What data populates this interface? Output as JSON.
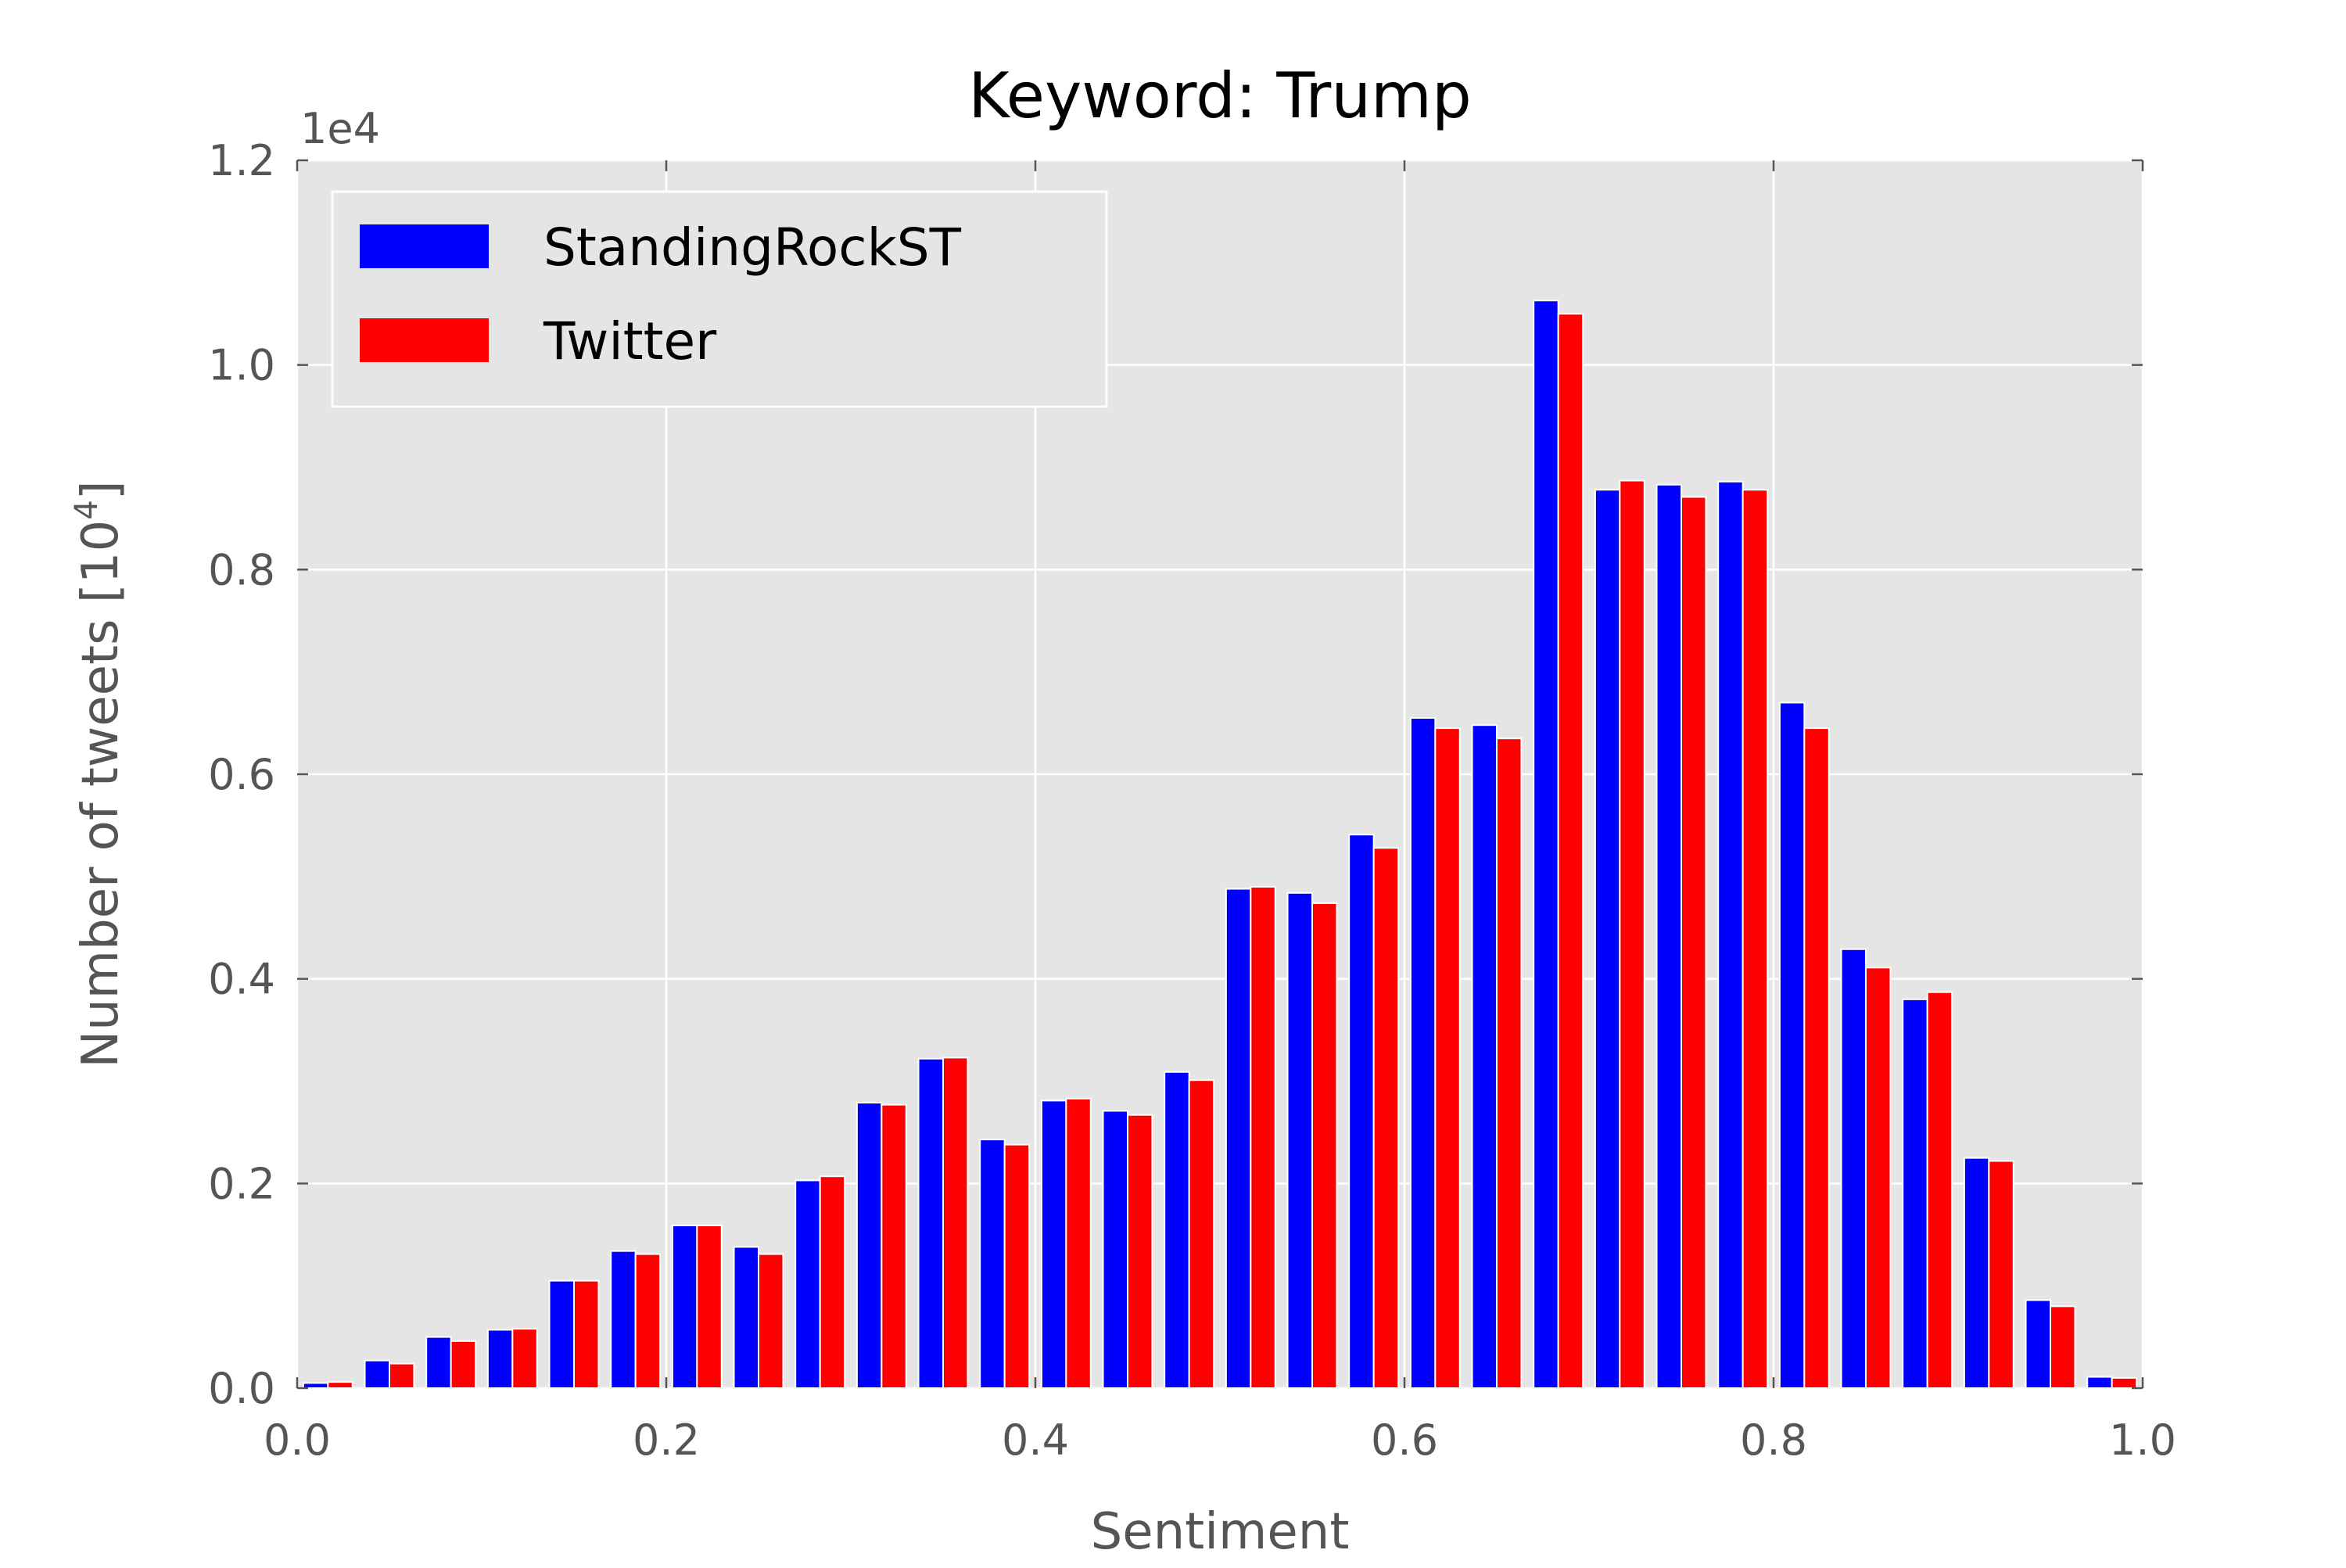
{
  "chart_data": {
    "type": "bar",
    "title": "Keyword: Trump",
    "xlabel": "Sentiment",
    "ylabel": "Number of tweets [10",
    "ylabel_sup": "4",
    "ylabel_suffix": "]",
    "y_offset_text": "1e4",
    "xlim": [
      0.0,
      1.0
    ],
    "ylim": [
      0.0,
      1.2
    ],
    "xticks": [
      "0.0",
      "0.2",
      "0.4",
      "0.6",
      "0.8",
      "1.0"
    ],
    "yticks": [
      "0.0",
      "0.2",
      "0.4",
      "0.6",
      "0.8",
      "1.0",
      "1.2"
    ],
    "grid": true,
    "legend_position": "top-left",
    "bins_count": 30,
    "series": [
      {
        "name": "StandingRockST",
        "color": "#0000ff",
        "values": [
          0.005,
          0.027,
          0.05,
          0.057,
          0.105,
          0.134,
          0.159,
          0.138,
          0.203,
          0.279,
          0.322,
          0.243,
          0.281,
          0.271,
          0.309,
          0.488,
          0.484,
          0.541,
          0.655,
          0.648,
          1.063,
          0.878,
          0.883,
          0.886,
          0.67,
          0.429,
          0.38,
          0.225,
          0.086,
          0.011
        ]
      },
      {
        "name": "Twitter",
        "color": "#ff0000",
        "values": [
          0.006,
          0.024,
          0.046,
          0.058,
          0.105,
          0.131,
          0.159,
          0.131,
          0.207,
          0.277,
          0.323,
          0.238,
          0.283,
          0.267,
          0.301,
          0.49,
          0.474,
          0.528,
          0.645,
          0.635,
          1.05,
          0.887,
          0.871,
          0.878,
          0.645,
          0.411,
          0.387,
          0.222,
          0.08,
          0.01
        ]
      }
    ]
  }
}
